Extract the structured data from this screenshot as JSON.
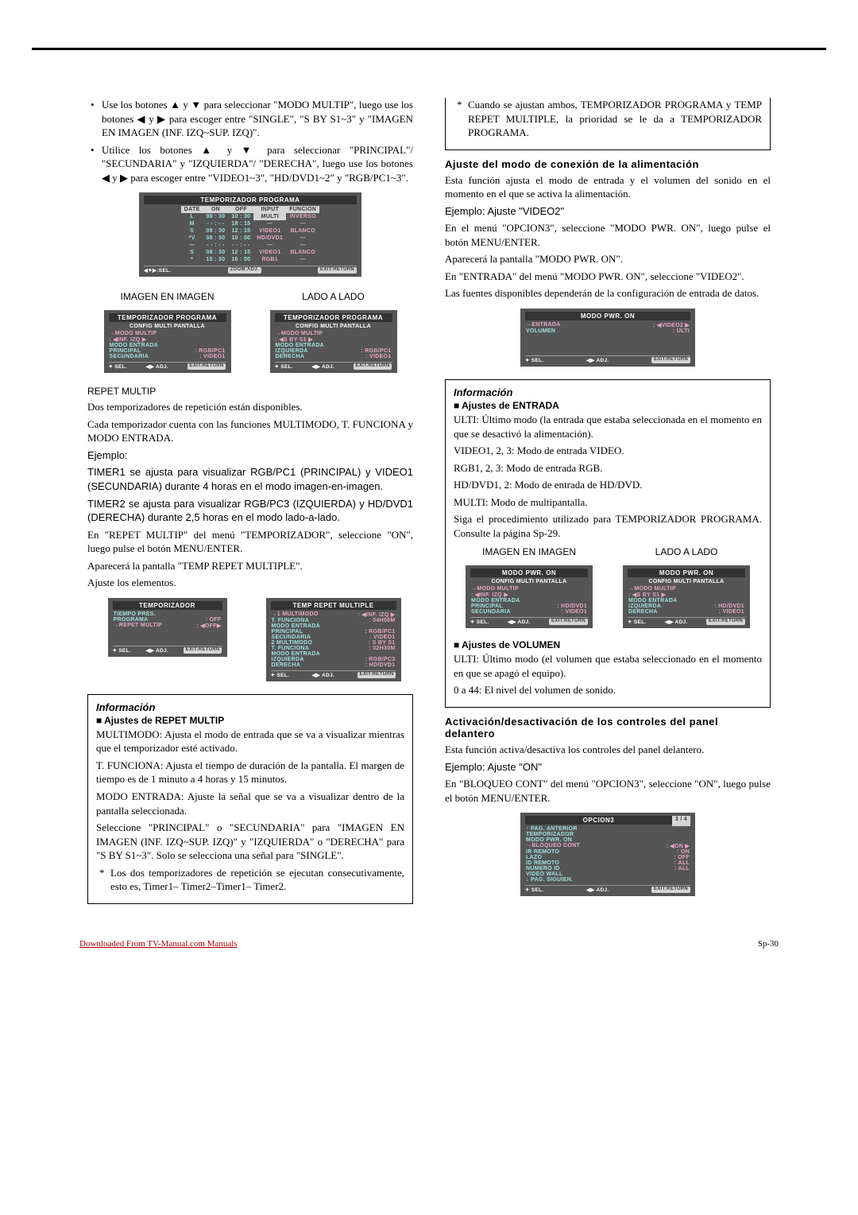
{
  "left": {
    "p1": "Use los botones ▲ y ▼ para seleccionar \"MODO MULTIP\", luego use los botones ◀ y ▶ para escoger entre \"SINGLE\", \"S BY S1~3\" y \"IMAGEN EN IMAGEN (INF. IZQ~SUP. IZQ)\".",
    "p2": "Utilice los botones ▲ y ▼ para seleccionar \"PRINCIPAL\"/ \"SECUNDARIA\" y \"IZQUIERDA\"/ \"DERECHA\", luego use los botones ◀ y ▶ para escoger entre \"VIDEO1~3\", \"HD/DVD1~2\" y \"RGB/PC1~3\".",
    "prog_title": "TEMPORIZADOR PROGRAMA",
    "headers": [
      "DATE",
      "ON",
      "OFF",
      "INPUT",
      "FUNCION"
    ],
    "rows": [
      [
        "L",
        "08 : 30",
        "10 : 30",
        "MULTI",
        "INVERSO"
      ],
      [
        "M",
        "- - : - -",
        "18 : 15",
        "—",
        "—"
      ],
      [
        "S",
        "08 : 30",
        "12 : 15",
        "VIDEO1",
        "BLANCO"
      ],
      [
        "*V",
        "08 : 30",
        "10 : 00",
        "HD/DVD1",
        "—"
      ],
      [
        "—",
        "- - : - -",
        "- - : - -",
        "—",
        "—"
      ],
      [
        "S",
        "08 : 30",
        "12 : 15",
        "VIDEO1",
        "BLANCO"
      ],
      [
        "*",
        "15 : 30",
        "16 : 00",
        "RGB1",
        "—"
      ]
    ],
    "footer1": [
      "◀✦▶:SEL.",
      "ZOOM:ADJ.",
      "EXIT:RETURN"
    ],
    "pip_label": "IMAGEN EN IMAGEN",
    "sbs_label": "LADO A LADO",
    "pip_osd": {
      "t1": "TEMPORIZADOR PROGRAMA",
      "t2": "CONFIG MULTI PANTALLA",
      "modo": "MODO MULTIP",
      "sel": ": ◀INF. IZQ  ▶",
      "me": "MODO ENTRADA",
      "r1": [
        "PRINCIPAL",
        ": RGB/PC1"
      ],
      "r2": [
        "SECUNDARIA",
        ": VIDEO1"
      ]
    },
    "sbs_osd": {
      "t1": "TEMPORIZADOR PROGRAMA",
      "t2": "CONFIG MULTI PANTALLA",
      "modo": "MODO MULTIP",
      "sel": ": ◀S BY S1  ▶",
      "me": "MODO ENTRADA",
      "r1": [
        "IZQUIERDA",
        ": RGB/PC1"
      ],
      "r2": [
        "DERECHA",
        ": VIDEO1"
      ]
    },
    "osd_footer": [
      "✦ SEL.",
      "◀▶ ADJ.",
      "EXIT:RETURN"
    ],
    "repet_label": "REPET MULTIP",
    "rp1": "Dos temporizadores de repetición están disponibles.",
    "rp2": "Cada temporizador cuenta con las funciones MULTIMODO, T. FUNCIONA y MODO ENTRADA.",
    "rp3": "Ejemplo:",
    "rp4": "TIMER1 se ajusta para visualizar RGB/PC1 (PRINCIPAL) y VIDEO1 (SECUNDARIA) durante 4 horas en el modo imagen-en-imagen.",
    "rp5": "TIMER2 se ajusta para visualizar RGB/PC3 (IZQUIERDA) y HD/DVD1 (DERECHA) durante 2,5 horas en el modo lado-a-lado.",
    "rp6": "En \"REPET MULTIP\" del menú \"TEMPORIZADOR\", seleccione \"ON\", luego pulse el botón MENU/ENTER.",
    "rp7": "Aparecerá la pantalla \"TEMP REPET MULTIPLE\".",
    "rp8": "Ajuste los elementos.",
    "temp_osd": {
      "title": "TEMPORIZADOR",
      "rows": [
        [
          "TIEMPO PRES.",
          ""
        ],
        [
          "PROGRAMA",
          ": OFF"
        ],
        [
          "REPET MULTIP",
          ": ◀OFF▶"
        ]
      ]
    },
    "trm_osd": {
      "title": "TEMP REPET MULTIPLE",
      "rows": [
        [
          "1 MULTIMODO",
          ": ◀INF. IZQ ▶"
        ],
        [
          "  T. FUNCIONA",
          ": 04H00M"
        ],
        [
          "  MODO ENTRADA",
          ""
        ],
        [
          "  PRINCIPAL",
          ": RGB/PC1"
        ],
        [
          "  SECUNDARIA",
          ": VIDEO1"
        ],
        [
          "2 MULTIMODO",
          ": S BY S1"
        ],
        [
          "  T. FUNCIONA",
          ": 02H30M"
        ],
        [
          "  MODO ENTRADA",
          ""
        ],
        [
          "  IZQUIERDA",
          ": RGB/PC3"
        ],
        [
          "  DERECHA",
          ": HD/DVD1"
        ]
      ]
    },
    "info_title": "Información",
    "info_sub": "Ajustes de REPET MULTIP",
    "ip1": "MULTIMODO: Ajusta el modo de entrada que se va a visualizar mientras que el temporizador esté activado.",
    "ip2": "T. FUNCIONA: Ajusta el tiempo de duración de la pantalla. El margen de tiempo es de 1 minuto a 4 horas y 15 minutos.",
    "ip3": "MODO ENTRADA: Ajuste la señal que se va a visualizar dentro de la pantalla seleccionada.",
    "ip4": "Seleccione \"PRINCIPAL\" o \"SECUNDARIA\" para \"IMAGEN EN IMAGEN (INF. IZQ~SUP. IZQ)\" y \"IZQUIERDA\" o \"DERECHA\" para \"S BY S1~3\". Solo se selecciona una señal para \"SINGLE\".",
    "ip5": "Los dos temporizadores de repetición se ejecutan consecutivamente, esto es, Timer1– Timer2–Timer1– Timer2.",
    "ip6": "Cuando se ajustan ambos, TEMPORIZADOR PROGRAMA y TEMP REPET MULTIPLE, la prioridad se le da a TEMPORIZADOR PROGRAMA."
  },
  "right": {
    "h1": "Ajuste del modo de conexión de la alimentación",
    "p1": "Esta función ajusta el modo de entrada y el volumen del sonido en el momento en el que se activa la alimentación.",
    "p2": "Ejemplo: Ajuste \"VIDEO2\"",
    "p3": "En el menú \"OPCION3\", seleccione \"MODO PWR. ON\", luego pulse el botón MENU/ENTER.",
    "p4": "Aparecerá la pantalla \"MODO PWR. ON\".",
    "p5": "En \"ENTRADA\" del menú \"MODO PWR. ON\", seleccione \"VIDEO2\".",
    "p6": "Las fuentes disponibles dependerán de la configuración de entrada de datos.",
    "pwr_osd": {
      "title": "MODO PWR. ON",
      "rows": [
        [
          "ENTRADA",
          ": ◀VIDEO2  ▶"
        ],
        [
          "VOLUMEN",
          ": ULTI"
        ]
      ]
    },
    "info_title": "Información",
    "info_sub1": "Ajustes de ENTRADA",
    "ia1": "ULTI: Último modo (la entrada que estaba seleccionada en el momento en que se desactivó la alimentación).",
    "ia2": "VIDEO1, 2, 3: Modo de entrada VIDEO.",
    "ia3": "RGB1, 2, 3: Modo de entrada RGB.",
    "ia4": "HD/DVD1, 2: Modo de entrada de HD/DVD.",
    "ia5": "MULTI: Modo de multipantalla.",
    "ia6": "Siga el procedimiento utilizado para TEMPORIZADOR PROGRAMA. Consulte la página Sp-29.",
    "pip2_label": "IMAGEN EN IMAGEN",
    "sbs2_label": "LADO A LADO",
    "pip2_osd": {
      "t1": "MODO PWR. ON",
      "t2": "CONFIG MULTI PANTALLA",
      "modo": "MODO MULTIP",
      "sel": ": ◀INF. IZQ  ▶",
      "me": "MODO ENTRADA",
      "r1": [
        "PRINCIPAL",
        ": HD/DVD1"
      ],
      "r2": [
        "SECUNDARIA",
        ": VIDEO1"
      ]
    },
    "sbs2_osd": {
      "t1": "MODO PWR. ON",
      "t2": "CONFIG MULTI PANTALLA",
      "modo": "MODO MULTIP",
      "sel": ": ◀S BY S1  ▶",
      "me": "MODO ENTRADA",
      "r1": [
        "IZQUIERDA",
        ": HD/DVD1"
      ],
      "r2": [
        "DERECHA",
        ": VIDEO1"
      ]
    },
    "info_sub2": "Ajustes de VOLUMEN",
    "iv1": "ULTI: Último modo (el volumen que estaba seleccionado en el momento en que se apagó el equipo).",
    "iv2": "0 a 44: El nivel del volumen de sonido.",
    "h2": "Activación/desactivación de los controles del panel delantero",
    "p7": "Esta función activa/desactiva los controles del panel delantero.",
    "p8": "Ejemplo: Ajuste \"ON\"",
    "p9": "En \"BLOQUEO CONT\" del menú \"OPCION3\", seleccione \"ON\", luego pulse el botón MENU/ENTER.",
    "opc_osd": {
      "title": "OPCION3",
      "page": "3 / 4",
      "rows": [
        [
          "↑ PAG. ANTERIOR",
          ""
        ],
        [
          "TEMPORIZADOR",
          ""
        ],
        [
          "MODO PWR. ON",
          ""
        ],
        [
          "BLOQUEO CONT",
          ": ◀ON  ▶"
        ],
        [
          "IR REMOTO",
          ": ON"
        ],
        [
          "LAZO",
          ": OFF"
        ],
        [
          "ID REMOTO",
          ": ALL"
        ],
        [
          "NUMERO ID",
          ": ALL"
        ],
        [
          "VIDEO WALL",
          ""
        ],
        [
          "↓ PAG. SIGUIEN.",
          ""
        ]
      ]
    }
  },
  "footer": {
    "link": "Downloaded From TV-Manual.com Manuals",
    "page": "Sp-30"
  }
}
